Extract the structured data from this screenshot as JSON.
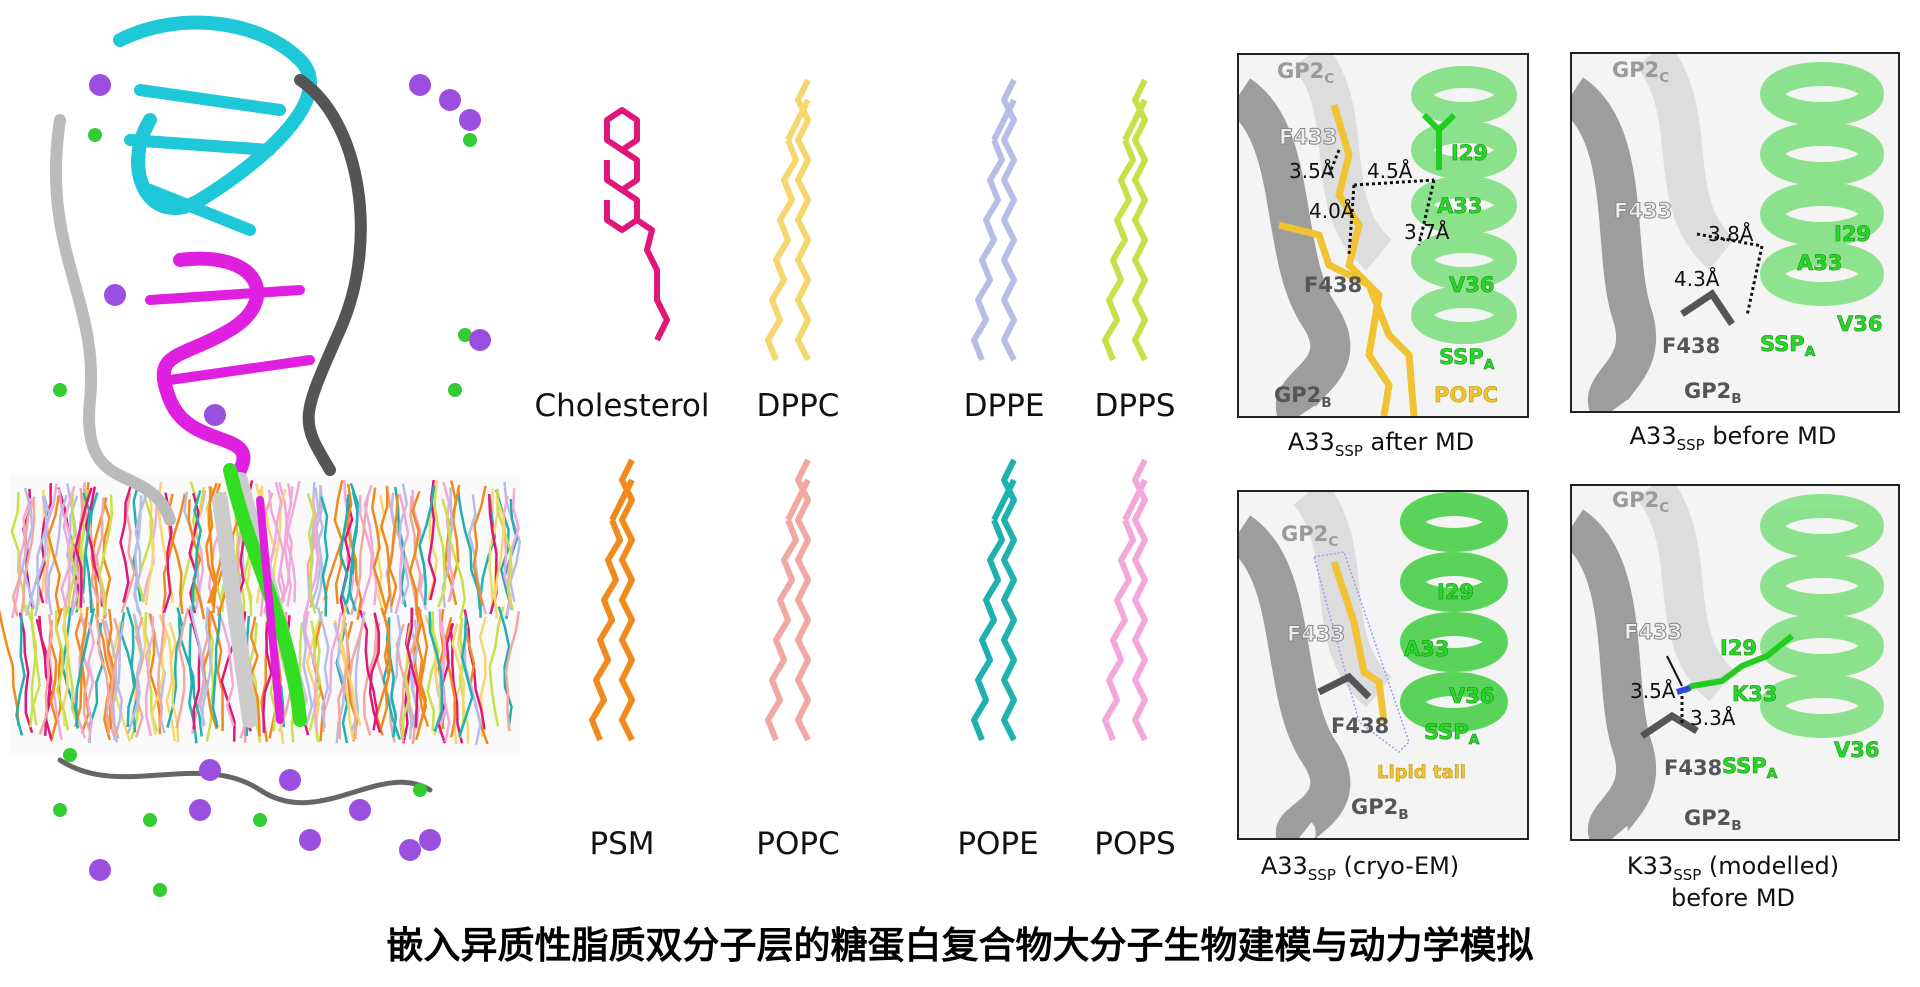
{
  "title": "嵌入异质性脂质双分子层的糖蛋白复合物大分子生物建模与动力学模拟",
  "lipids": {
    "row1": [
      "Cholesterol",
      "DPPC",
      "DPPE",
      "DPPS"
    ],
    "row2": [
      "PSM",
      "POPC",
      "POPE",
      "POPS"
    ],
    "colors": {
      "Cholesterol": "#e0177a",
      "DPPC": "#f5d76e",
      "DPPE": "#b8bde8",
      "DPPS": "#c8e04a",
      "PSM": "#f08a1c",
      "POPC": "#f0a8a0",
      "POPE": "#1fb0b0",
      "POPS": "#f2a8d8"
    }
  },
  "panels": [
    {
      "caption_main": "A33",
      "caption_sub": "SSP",
      "caption_rest": " after MD",
      "labels": {
        "gp2c": "GP2",
        "gp2c_sub": "C",
        "f433": "F433",
        "i29": "I29",
        "a33": "A33",
        "v36": "V36",
        "f438": "F438",
        "ssp": "SSP",
        "ssp_sub": "A",
        "gp2b": "GP2",
        "gp2b_sub": "B",
        "popc": "POPC"
      },
      "distances": [
        "3.5Å",
        "4.5Å",
        "4.0Å",
        "3.7Å"
      ]
    },
    {
      "caption_main": "A33",
      "caption_sub": "SSP",
      "caption_rest": " before MD",
      "labels": {
        "gp2c": "GP2",
        "gp2c_sub": "C",
        "f433": "F433",
        "i29": "I29",
        "a33": "A33",
        "v36": "V36",
        "f438": "F438",
        "ssp": "SSP",
        "ssp_sub": "A",
        "gp2b": "GP2",
        "gp2b_sub": "B"
      },
      "distances": [
        "3.8Å",
        "4.3Å"
      ]
    },
    {
      "caption_main": "A33",
      "caption_sub": "SSP",
      "caption_rest": " (cryo-EM)",
      "labels": {
        "gp2c": "GP2",
        "gp2c_sub": "C",
        "f433": "F433",
        "i29": "I29",
        "a33": "A33",
        "v36": "V36",
        "f438": "F438",
        "ssp": "SSP",
        "ssp_sub": "A",
        "gp2b": "GP2",
        "gp2b_sub": "B",
        "lipid_tail": "Lipid tail"
      }
    },
    {
      "caption_main": "K33",
      "caption_sub": "SSP",
      "caption_rest": " (modelled)",
      "caption_line2": "before MD",
      "labels": {
        "gp2c": "GP2",
        "gp2c_sub": "C",
        "f433": "F433",
        "i29": "I29",
        "k33": "K33",
        "v36": "V36",
        "f438": "F438",
        "ssp": "SSP",
        "ssp_sub": "A",
        "gp2b": "GP2",
        "gp2b_sub": "B"
      },
      "distances": [
        "3.5Å",
        "3.3Å"
      ]
    }
  ],
  "colors": {
    "ssp_green": "#2ad62a",
    "lipid_yellow": "#f1c232",
    "gp2_gray": "#8a8a8a",
    "ion_purple": "#9b4fe0",
    "ion_green": "#33cc33",
    "protein_cyan": "#1fc8d8",
    "protein_magenta": "#e020e0"
  }
}
